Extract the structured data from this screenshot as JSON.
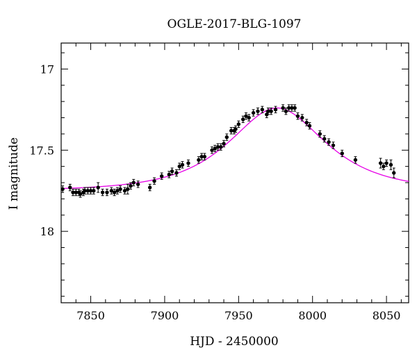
{
  "chart_data": {
    "type": "scatter",
    "title": "OGLE-2017-BLG-1097",
    "xlabel": "HJD - 2450000",
    "ylabel": "I magnitude",
    "xlim": [
      7830,
      8065
    ],
    "ylim": [
      18.44,
      16.84
    ],
    "y_inverted": true,
    "x_major_ticks": [
      7850,
      7900,
      7950,
      8000,
      8050
    ],
    "x_minor_step": 10,
    "y_major_ticks": [
      17,
      17.5,
      18
    ],
    "y_minor_step": 0.1,
    "x_tick_labels": [
      "7850",
      "7900",
      "7950",
      "8000",
      "8050"
    ],
    "y_tick_labels": [
      "17",
      "17.5",
      "18"
    ],
    "grid": false,
    "legend": "none",
    "colors": {
      "points": "#000000",
      "model": "#e600e6",
      "frame": "#000000"
    },
    "series": [
      {
        "kind": "observations",
        "points": [
          [
            7831,
            17.74,
            0.02
          ],
          [
            7836,
            17.73,
            0.02
          ],
          [
            7838,
            17.76,
            0.02
          ],
          [
            7840,
            17.76,
            0.02
          ],
          [
            7842,
            17.76,
            0.02
          ],
          [
            7843,
            17.77,
            0.02
          ],
          [
            7845,
            17.76,
            0.02
          ],
          [
            7846,
            17.75,
            0.02
          ],
          [
            7848,
            17.75,
            0.02
          ],
          [
            7850,
            17.75,
            0.02
          ],
          [
            7852,
            17.75,
            0.02
          ],
          [
            7855,
            17.73,
            0.03
          ],
          [
            7858,
            17.76,
            0.02
          ],
          [
            7861,
            17.76,
            0.02
          ],
          [
            7864,
            17.75,
            0.02
          ],
          [
            7866,
            17.76,
            0.02
          ],
          [
            7868,
            17.75,
            0.02
          ],
          [
            7870,
            17.74,
            0.02
          ],
          [
            7873,
            17.75,
            0.02
          ],
          [
            7875,
            17.74,
            0.03
          ],
          [
            7877,
            17.72,
            0.02
          ],
          [
            7879,
            17.7,
            0.02
          ],
          [
            7882,
            17.71,
            0.02
          ],
          [
            7890,
            17.73,
            0.02
          ],
          [
            7893,
            17.69,
            0.02
          ],
          [
            7898,
            17.66,
            0.02
          ],
          [
            7903,
            17.65,
            0.02
          ],
          [
            7905,
            17.63,
            0.02
          ],
          [
            7908,
            17.64,
            0.02
          ],
          [
            7910,
            17.6,
            0.02
          ],
          [
            7912,
            17.59,
            0.02
          ],
          [
            7916,
            17.58,
            0.02
          ],
          [
            7923,
            17.56,
            0.02
          ],
          [
            7925,
            17.54,
            0.02
          ],
          [
            7927,
            17.54,
            0.02
          ],
          [
            7932,
            17.5,
            0.02
          ],
          [
            7934,
            17.49,
            0.02
          ],
          [
            7936,
            17.48,
            0.02
          ],
          [
            7938,
            17.48,
            0.02
          ],
          [
            7940,
            17.46,
            0.02
          ],
          [
            7942,
            17.42,
            0.02
          ],
          [
            7945,
            17.38,
            0.02
          ],
          [
            7947,
            17.38,
            0.02
          ],
          [
            7948,
            17.37,
            0.02
          ],
          [
            7950,
            17.34,
            0.02
          ],
          [
            7953,
            17.31,
            0.02
          ],
          [
            7955,
            17.29,
            0.02
          ],
          [
            7957,
            17.3,
            0.02
          ],
          [
            7960,
            17.27,
            0.02
          ],
          [
            7963,
            17.26,
            0.02
          ],
          [
            7966,
            17.25,
            0.02
          ],
          [
            7969,
            17.28,
            0.02
          ],
          [
            7970,
            17.26,
            0.02
          ],
          [
            7972,
            17.26,
            0.02
          ],
          [
            7975,
            17.25,
            0.02
          ],
          [
            7980,
            17.24,
            0.02
          ],
          [
            7982,
            17.26,
            0.02
          ],
          [
            7984,
            17.24,
            0.02
          ],
          [
            7986,
            17.24,
            0.02
          ],
          [
            7988,
            17.24,
            0.02
          ],
          [
            7990,
            17.29,
            0.02
          ],
          [
            7993,
            17.3,
            0.02
          ],
          [
            7996,
            17.33,
            0.02
          ],
          [
            7998,
            17.35,
            0.02
          ],
          [
            8005,
            17.4,
            0.02
          ],
          [
            8008,
            17.43,
            0.02
          ],
          [
            8011,
            17.45,
            0.02
          ],
          [
            8014,
            17.47,
            0.02
          ],
          [
            8020,
            17.52,
            0.02
          ],
          [
            8029,
            17.56,
            0.02
          ],
          [
            8046,
            17.58,
            0.03
          ],
          [
            8048,
            17.6,
            0.02
          ],
          [
            8050,
            17.58,
            0.02
          ],
          [
            8053,
            17.59,
            0.03
          ],
          [
            8055,
            17.64,
            0.03
          ]
        ]
      },
      {
        "kind": "model",
        "curve": "PSPL",
        "t0": 7976,
        "peak_mag": 17.24,
        "baseline_mag": 17.75,
        "tE": 46
      }
    ]
  }
}
